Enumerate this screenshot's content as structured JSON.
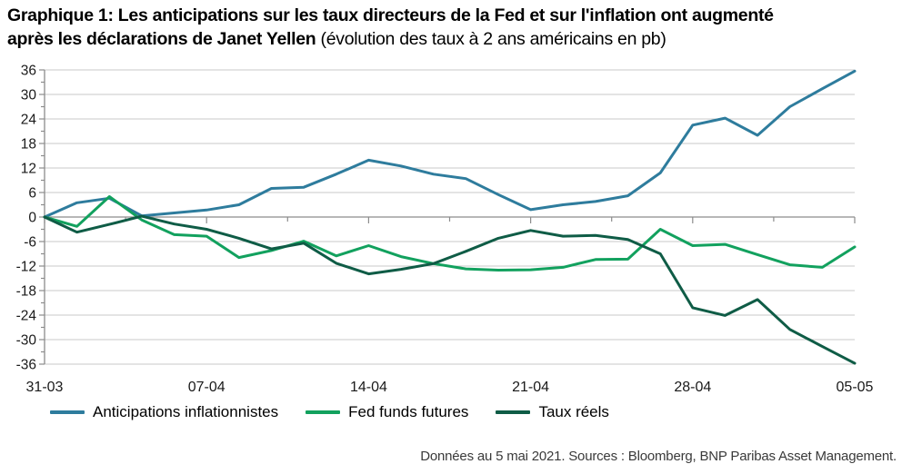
{
  "title": {
    "line1": "Graphique 1: Les anticipations sur les taux directeurs de la Fed et sur l'inflation ont augmenté",
    "line2_bold": "après les déclarations de Janet Yellen",
    "line2_normal": " (évolution des taux à 2 ans américains en pb)"
  },
  "footer": "Données au 5 mai 2021. Sources : Bloomberg, BNP Paribas Asset Management.",
  "colors": {
    "anticipations": "#2E7C9D",
    "fed_funds": "#12A15E",
    "taux_reels": "#0F5C46",
    "gridline": "#c8c8c8",
    "zero_axis": "#8c8c8c",
    "axis": "#8c8c8c",
    "tick_label": "#1a1a1a"
  },
  "chart_data": {
    "type": "line",
    "x": [
      "31-03",
      "01-04",
      "02-04",
      "05-04",
      "06-04",
      "07-04",
      "08-04",
      "09-04",
      "12-04",
      "13-04",
      "14-04",
      "15-04",
      "16-04",
      "19-04",
      "20-04",
      "21-04",
      "22-04",
      "23-04",
      "26-04",
      "27-04",
      "28-04",
      "29-04",
      "30-04",
      "03-05",
      "04-05",
      "05-05"
    ],
    "x_tick_labels": [
      "31-03",
      "07-04",
      "14-04",
      "21-04",
      "28-04",
      "05-05"
    ],
    "x_major_tick_indices": [
      0,
      5,
      10,
      15,
      20,
      25
    ],
    "series": [
      {
        "name": "Anticipations inflationnistes",
        "color": "#2E7C9D",
        "values": [
          0,
          3.5,
          4.6,
          0.3,
          1.0,
          1.7,
          3.0,
          7.0,
          7.3,
          10.5,
          13.9,
          12.5,
          10.5,
          9.4,
          5.5,
          1.8,
          3.0,
          3.8,
          5.2,
          10.8,
          22.5,
          24.2,
          20.0,
          27.0,
          31.4,
          35.7
        ]
      },
      {
        "name": "Fed funds futures",
        "color": "#12A15E",
        "values": [
          0,
          -2.3,
          5.0,
          -0.7,
          -4.3,
          -4.7,
          -9.9,
          -8.2,
          -5.9,
          -9.5,
          -7.0,
          -9.7,
          -11.4,
          -12.7,
          -13.0,
          -12.9,
          -12.3,
          -10.4,
          -10.3,
          -3.0,
          -7.0,
          -6.7,
          -9.2,
          -11.7,
          -12.3,
          -7.3
        ]
      },
      {
        "name": "Taux réels",
        "color": "#0F5C46",
        "values": [
          0,
          -3.7,
          -1.8,
          0.2,
          -1.7,
          -3.0,
          -5.2,
          -7.8,
          -6.4,
          -11.3,
          -13.9,
          -12.8,
          -11.4,
          -8.4,
          -5.2,
          -3.3,
          -4.7,
          -4.5,
          -5.5,
          -9.0,
          -22.2,
          -24.1,
          -20.2,
          -27.5,
          -31.7,
          -35.8
        ]
      }
    ],
    "ylim": [
      -36,
      36
    ],
    "y_tick_step": 6,
    "y_minor_tick_step": 3,
    "grid": "horizontal",
    "legend_position": "bottom"
  }
}
